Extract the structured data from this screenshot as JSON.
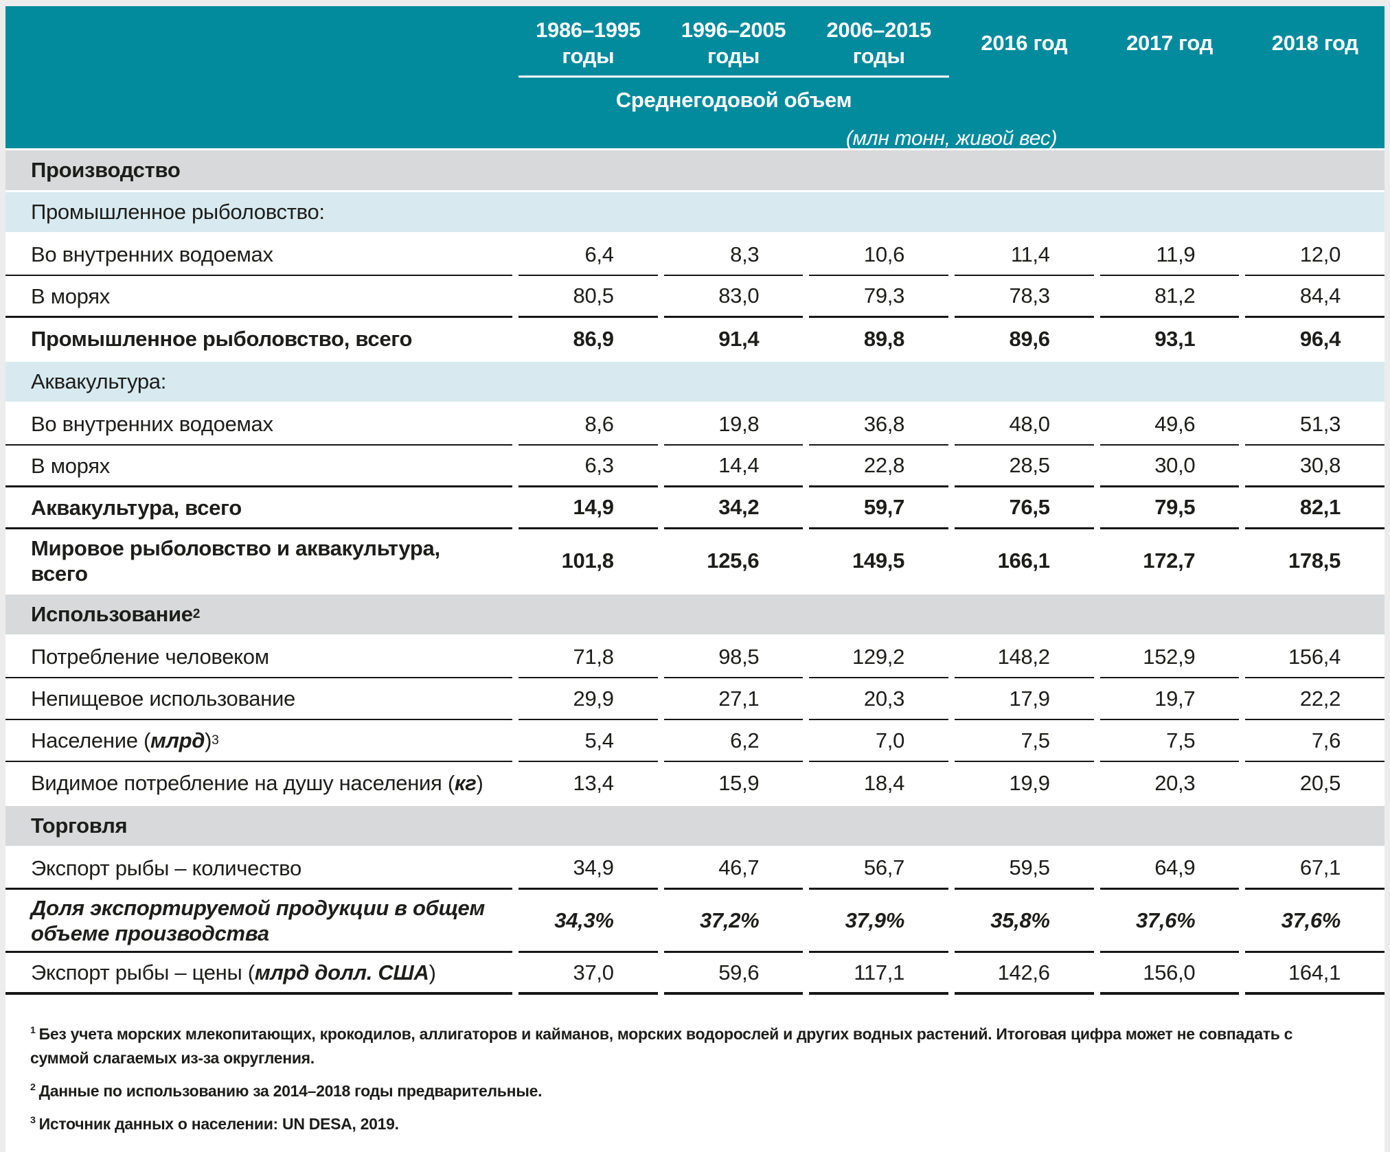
{
  "colors": {
    "header_teal": "#028a9d",
    "band_blue": "#d8eaf0",
    "band_gray": "#d8d9da",
    "page_background": "#ececec",
    "rule_black": "#161616"
  },
  "table": {
    "header": {
      "columns": [
        {
          "line1": "1986–1995",
          "line2": "годы"
        },
        {
          "line1": "1996–2005",
          "line2": "годы"
        },
        {
          "line1": "2006–2015",
          "line2": "годы"
        },
        {
          "line1": "2016 год"
        },
        {
          "line1": "2017 год"
        },
        {
          "line1": "2018 год"
        }
      ],
      "subheader": "Среднегодовой объем",
      "units": "(млн тонн, живой вес)"
    },
    "rows": [
      {
        "type": "section",
        "label": [
          {
            "t": "Производство",
            "s": "b"
          }
        ]
      },
      {
        "type": "band",
        "label": [
          {
            "t": "Промышленное рыболовство:",
            "s": "r"
          }
        ]
      },
      {
        "type": "data",
        "label": [
          {
            "t": "Во внутренних водоемах",
            "s": "r"
          }
        ],
        "values": [
          "6,4",
          "8,3",
          "10,6",
          "11,4",
          "11,9",
          "12,0"
        ],
        "rule": "thin"
      },
      {
        "type": "data",
        "label": [
          {
            "t": "В морях",
            "s": "r"
          }
        ],
        "values": [
          "80,5",
          "83,0",
          "79,3",
          "78,3",
          "81,2",
          "84,4"
        ],
        "rule": "thick"
      },
      {
        "type": "data",
        "emphasis": "bold",
        "label": [
          {
            "t": "Промышленное рыболовство, всего",
            "s": "b"
          }
        ],
        "values": [
          "86,9",
          "91,4",
          "89,8",
          "89,6",
          "93,1",
          "96,4"
        ],
        "rule": "none"
      },
      {
        "type": "band",
        "label": [
          {
            "t": "Аквакультура:",
            "s": "r"
          }
        ]
      },
      {
        "type": "data",
        "label": [
          {
            "t": "Во внутренних водоемах",
            "s": "r"
          }
        ],
        "values": [
          "8,6",
          "19,8",
          "36,8",
          "48,0",
          "49,6",
          "51,3"
        ],
        "rule": "thin"
      },
      {
        "type": "data",
        "label": [
          {
            "t": "В морях",
            "s": "r"
          }
        ],
        "values": [
          "6,3",
          "14,4",
          "22,8",
          "28,5",
          "30,0",
          "30,8"
        ],
        "rule": "thick"
      },
      {
        "type": "data",
        "emphasis": "bold",
        "label": [
          {
            "t": "Аквакультура, всего",
            "s": "b"
          }
        ],
        "values": [
          "14,9",
          "34,2",
          "59,7",
          "76,5",
          "79,5",
          "82,1"
        ],
        "rule": "thick"
      },
      {
        "type": "data",
        "emphasis": "bold",
        "two_line": true,
        "label_lines": [
          [
            {
              "t": "Мировое рыболовство и аквакультура,",
              "s": "b"
            }
          ],
          [
            {
              "t": "всего",
              "s": "b"
            }
          ]
        ],
        "values": [
          "101,8",
          "125,6",
          "149,5",
          "166,1",
          "172,7",
          "178,5"
        ],
        "rule": "none"
      },
      {
        "type": "section",
        "label": [
          {
            "t": "Использование",
            "s": "b"
          },
          {
            "t": "2",
            "s": "sup"
          }
        ]
      },
      {
        "type": "data",
        "label": [
          {
            "t": "Потребление человеком",
            "s": "r"
          }
        ],
        "values": [
          "71,8",
          "98,5",
          "129,2",
          "148,2",
          "152,9",
          "156,4"
        ],
        "rule": "thin"
      },
      {
        "type": "data",
        "label": [
          {
            "t": "Непищевое использование",
            "s": "r"
          }
        ],
        "values": [
          "29,9",
          "27,1",
          "20,3",
          "17,9",
          "19,7",
          "22,2"
        ],
        "rule": "thin"
      },
      {
        "type": "data",
        "label": [
          {
            "t": "Население (",
            "s": "r"
          },
          {
            "t": "млрд",
            "s": "bi"
          },
          {
            "t": ")",
            "s": "r"
          },
          {
            "t": "3",
            "s": "sup"
          }
        ],
        "values": [
          "5,4",
          "6,2",
          "7,0",
          "7,5",
          "7,5",
          "7,6"
        ],
        "rule": "thin"
      },
      {
        "type": "data",
        "label": [
          {
            "t": "Видимое потребление на душу населения (",
            "s": "r"
          },
          {
            "t": "кг",
            "s": "bi"
          },
          {
            "t": ")",
            "s": "r"
          }
        ],
        "values": [
          "13,4",
          "15,9",
          "18,4",
          "19,9",
          "20,3",
          "20,5"
        ],
        "rule": "none"
      },
      {
        "type": "section",
        "label": [
          {
            "t": "Торговля",
            "s": "b"
          }
        ]
      },
      {
        "type": "data",
        "label": [
          {
            "t": "Экспорт рыбы – количество",
            "s": "r"
          }
        ],
        "values": [
          "34,9",
          "46,7",
          "56,7",
          "59,5",
          "64,9",
          "67,1"
        ],
        "rule": "thick"
      },
      {
        "type": "data",
        "emphasis": "bolditalic",
        "two_line": true,
        "label_lines": [
          [
            {
              "t": "Доля экспортируемой продукции в общем",
              "s": "bi"
            }
          ],
          [
            {
              "t": "объеме производства",
              "s": "bi"
            }
          ]
        ],
        "values": [
          "34,3%",
          "37,2%",
          "37,9%",
          "35,8%",
          "37,6%",
          "37,6%"
        ],
        "rule": "thick"
      },
      {
        "type": "data",
        "label": [
          {
            "t": "Экспорт рыбы – цены (",
            "s": "r"
          },
          {
            "t": "млрд долл. США",
            "s": "bi"
          },
          {
            "t": ")",
            "s": "r"
          }
        ],
        "values": [
          "37,0",
          "59,6",
          "117,1",
          "142,6",
          "156,0",
          "164,1"
        ],
        "rule": "final"
      }
    ],
    "footnotes": [
      {
        "marker": "1",
        "text": "Без учета морских млекопитающих, крокодилов, аллигаторов и кайманов, морских водорослей и других водных растений. Итоговая цифра может не совпадать с суммой слагаемых из-за округления."
      },
      {
        "marker": "2",
        "text": "Данные по использованию за 2014–2018 годы предварительные."
      },
      {
        "marker": "3",
        "text": "Источник данных о населении: UN DESA, 2019."
      }
    ]
  }
}
